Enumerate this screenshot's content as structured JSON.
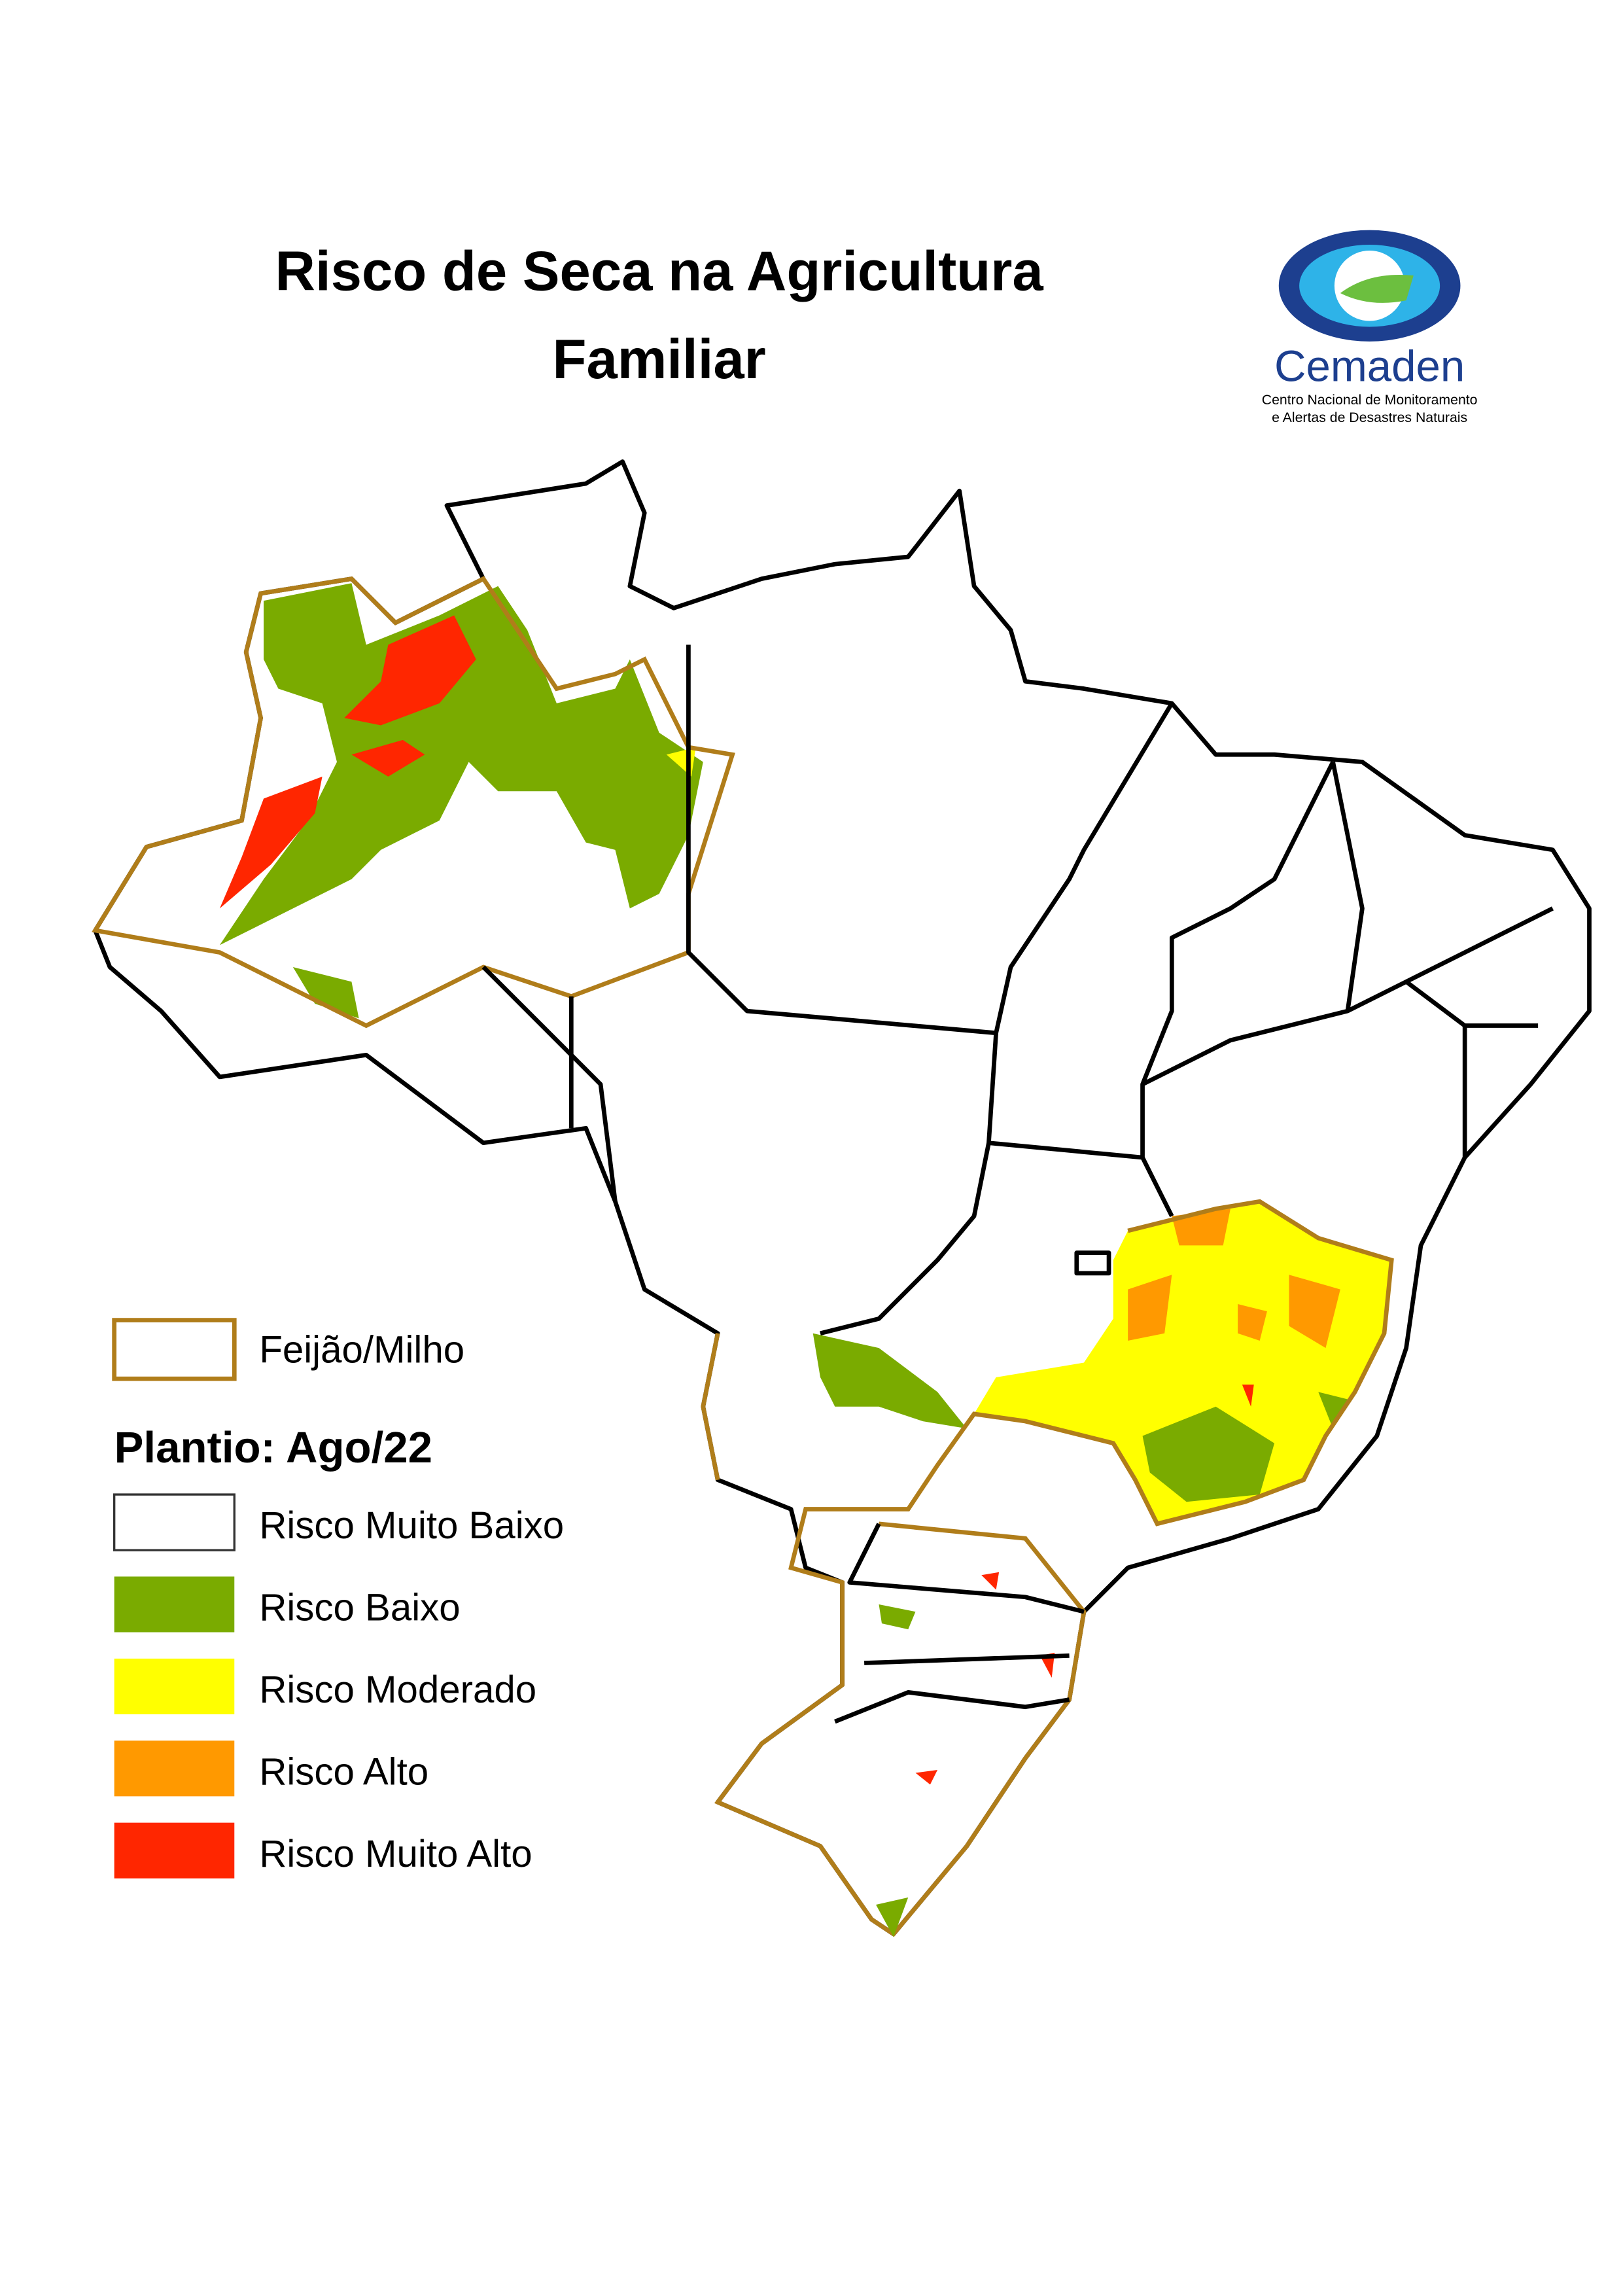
{
  "header": {
    "title_lines": [
      "Risco de Seca na Agricultura",
      "Familiar"
    ]
  },
  "logo": {
    "name": "Cemaden",
    "subtitle_lines": [
      "Centro Nacional de Monitoramento",
      "e Alertas de Desastres Naturais"
    ]
  },
  "legend": {
    "crop": {
      "label": "Feijão/Milho",
      "color": "#b07d1a"
    },
    "period": "Plantio: Ago/22",
    "classes": [
      {
        "label": "Risco Muito Baixo",
        "color": "#ffffff"
      },
      {
        "label": "Risco Baixo",
        "color": "#7aab00"
      },
      {
        "label": "Risco Moderado",
        "color": "#ffff00"
      },
      {
        "label": "Risco Alto",
        "color": "#ff9900"
      },
      {
        "label": "Risco Muito Alto",
        "color": "#ff2600"
      }
    ]
  }
}
